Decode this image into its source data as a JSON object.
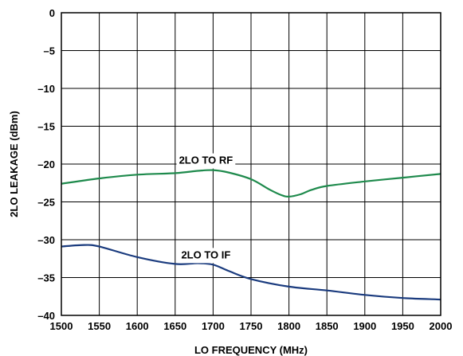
{
  "chart_data": {
    "type": "line",
    "xlabel": "LO FREQUENCY (MHz)",
    "ylabel": "2LO LEAKAGE (dBm)",
    "xlim": [
      1500,
      2000
    ],
    "ylim": [
      -40,
      0
    ],
    "xticks": [
      "1500",
      "1550",
      "1600",
      "1650",
      "1700",
      "1750",
      "1800",
      "1850",
      "1900",
      "1950",
      "2000"
    ],
    "yticks": [
      "0",
      "–5",
      "–10",
      "–15",
      "–20",
      "–25",
      "–30",
      "–35",
      "–40"
    ],
    "grid": true,
    "series": [
      {
        "name": "2LO TO RF",
        "color": "#1e8a4c",
        "x": [
          1500,
          1550,
          1600,
          1650,
          1680,
          1700,
          1720,
          1750,
          1775,
          1790,
          1800,
          1815,
          1830,
          1850,
          1900,
          1950,
          2000
        ],
        "y": [
          -22.6,
          -21.9,
          -21.4,
          -21.2,
          -20.9,
          -20.8,
          -21.1,
          -22.0,
          -23.4,
          -24.1,
          -24.3,
          -24.0,
          -23.4,
          -22.9,
          -22.3,
          -21.8,
          -21.3
        ]
      },
      {
        "name": "2LO TO IF",
        "color": "#1a3b7e",
        "x": [
          1500,
          1530,
          1550,
          1600,
          1650,
          1680,
          1700,
          1720,
          1750,
          1800,
          1850,
          1900,
          1950,
          2000
        ],
        "y": [
          -30.9,
          -30.7,
          -30.9,
          -32.3,
          -33.2,
          -33.1,
          -33.3,
          -34.1,
          -35.2,
          -36.2,
          -36.7,
          -37.3,
          -37.7,
          -37.9
        ]
      }
    ]
  }
}
